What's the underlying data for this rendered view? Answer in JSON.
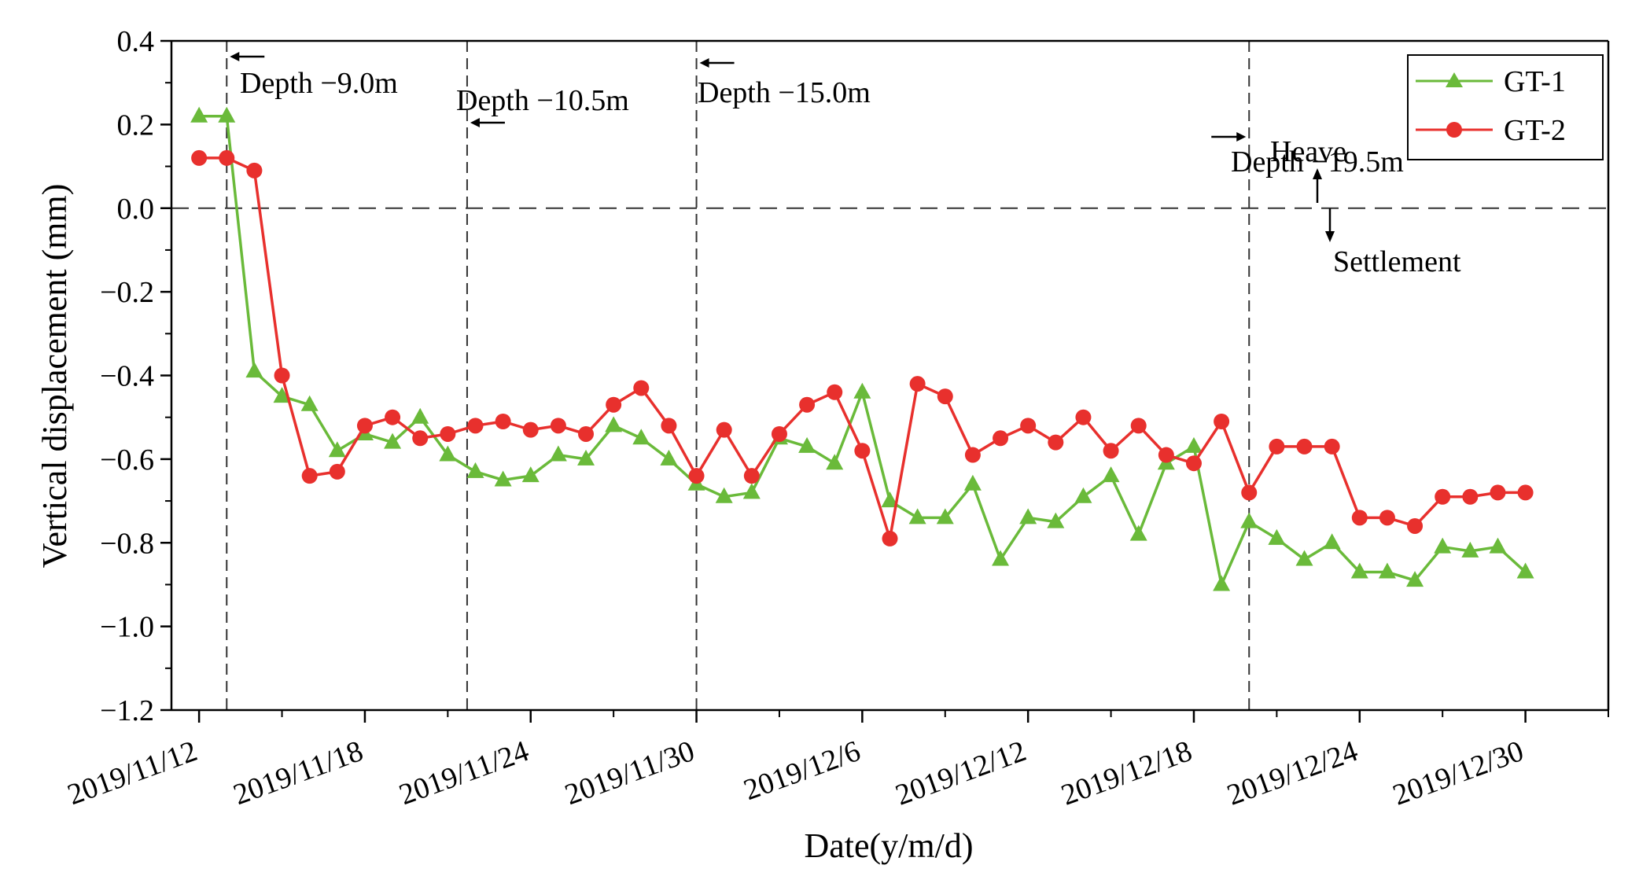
{
  "chart_data": {
    "type": "line",
    "xlabel": "Date(y/m/d)",
    "ylabel": "Vertical displacement (mm)",
    "ylim": [
      -1.2,
      0.4
    ],
    "yticks": [
      "0.4",
      "0.2",
      "0.0",
      "-0.2",
      "-0.4",
      "-0.6",
      "-0.8",
      "-1.0",
      "-1.2"
    ],
    "xlim_days": [
      -1,
      51
    ],
    "xticks": [
      {
        "day": 0,
        "label": "2019/11/12"
      },
      {
        "day": 6,
        "label": "2019/11/18"
      },
      {
        "day": 12,
        "label": "2019/11/24"
      },
      {
        "day": 18,
        "label": "2019/11/30"
      },
      {
        "day": 24,
        "label": "2019/12/6"
      },
      {
        "day": 30,
        "label": "2019/12/12"
      },
      {
        "day": 36,
        "label": "2019/12/18"
      },
      {
        "day": 42,
        "label": "2019/12/24"
      },
      {
        "day": 48,
        "label": "2019/12/30"
      }
    ],
    "series": [
      {
        "name": "GT-1",
        "color": "#6aba3a",
        "marker": "triangle",
        "x": [
          0,
          1,
          2,
          3,
          4,
          5,
          6,
          7,
          8,
          9,
          10,
          11,
          12,
          13,
          14,
          15,
          16,
          17,
          18,
          19,
          20,
          21,
          22,
          23,
          24,
          25,
          26,
          27,
          28,
          29,
          30,
          31,
          32,
          33,
          34,
          35,
          36,
          37,
          38,
          39,
          40,
          41,
          42,
          43,
          44,
          45,
          46,
          47,
          48
        ],
        "values": [
          0.22,
          0.22,
          -0.39,
          -0.45,
          -0.47,
          -0.58,
          -0.54,
          -0.56,
          -0.5,
          -0.59,
          -0.63,
          -0.65,
          -0.64,
          -0.59,
          -0.6,
          -0.52,
          -0.55,
          -0.6,
          -0.66,
          -0.69,
          -0.68,
          -0.55,
          -0.57,
          -0.61,
          -0.44,
          -0.7,
          -0.74,
          -0.74,
          -0.66,
          -0.84,
          -0.74,
          -0.75,
          -0.69,
          -0.64,
          -0.78,
          -0.61,
          -0.57,
          -0.9,
          -0.75,
          -0.79,
          -0.84,
          -0.8,
          -0.87,
          -0.87,
          -0.89,
          -0.81,
          -0.82,
          -0.81,
          -0.87
        ]
      },
      {
        "name": "GT-2",
        "color": "#e8302d",
        "marker": "circle",
        "x": [
          0,
          1,
          2,
          3,
          4,
          5,
          6,
          7,
          8,
          9,
          10,
          11,
          12,
          13,
          14,
          15,
          16,
          17,
          18,
          19,
          20,
          21,
          22,
          23,
          24,
          25,
          26,
          27,
          28,
          29,
          30,
          31,
          32,
          33,
          34,
          35,
          36,
          37,
          38,
          39,
          40,
          41,
          42,
          43,
          44,
          45,
          46,
          47,
          48
        ],
        "values": [
          0.12,
          0.12,
          0.09,
          -0.4,
          -0.64,
          -0.63,
          -0.52,
          -0.5,
          -0.55,
          -0.54,
          -0.52,
          -0.51,
          -0.53,
          -0.52,
          -0.54,
          -0.47,
          -0.43,
          -0.52,
          -0.64,
          -0.53,
          -0.64,
          -0.54,
          -0.47,
          -0.44,
          -0.58,
          -0.79,
          -0.42,
          -0.45,
          -0.59,
          -0.55,
          -0.52,
          -0.56,
          -0.5,
          -0.58,
          -0.52,
          -0.59,
          -0.61,
          -0.51,
          -0.68,
          -0.57,
          -0.57,
          -0.57,
          -0.74,
          -0.74,
          -0.76,
          -0.69,
          -0.69,
          -0.68,
          -0.68
        ]
      }
    ],
    "reference_lines": [
      {
        "day": 1,
        "label": "Depth −9.0m",
        "arrow": "left"
      },
      {
        "day": 9.7,
        "label": "Depth −10.5m",
        "arrow": "left"
      },
      {
        "day": 18,
        "label": "Depth −15.0m",
        "arrow": "left"
      },
      {
        "day": 38,
        "label": "Depth −19.5m",
        "arrow": "right"
      }
    ],
    "zero_line": 0.0,
    "annotations": {
      "heave": "Heave",
      "settlement": "Settlement"
    },
    "legend": {
      "placement": "top-right",
      "entries": [
        "GT-1",
        "GT-2"
      ]
    }
  }
}
